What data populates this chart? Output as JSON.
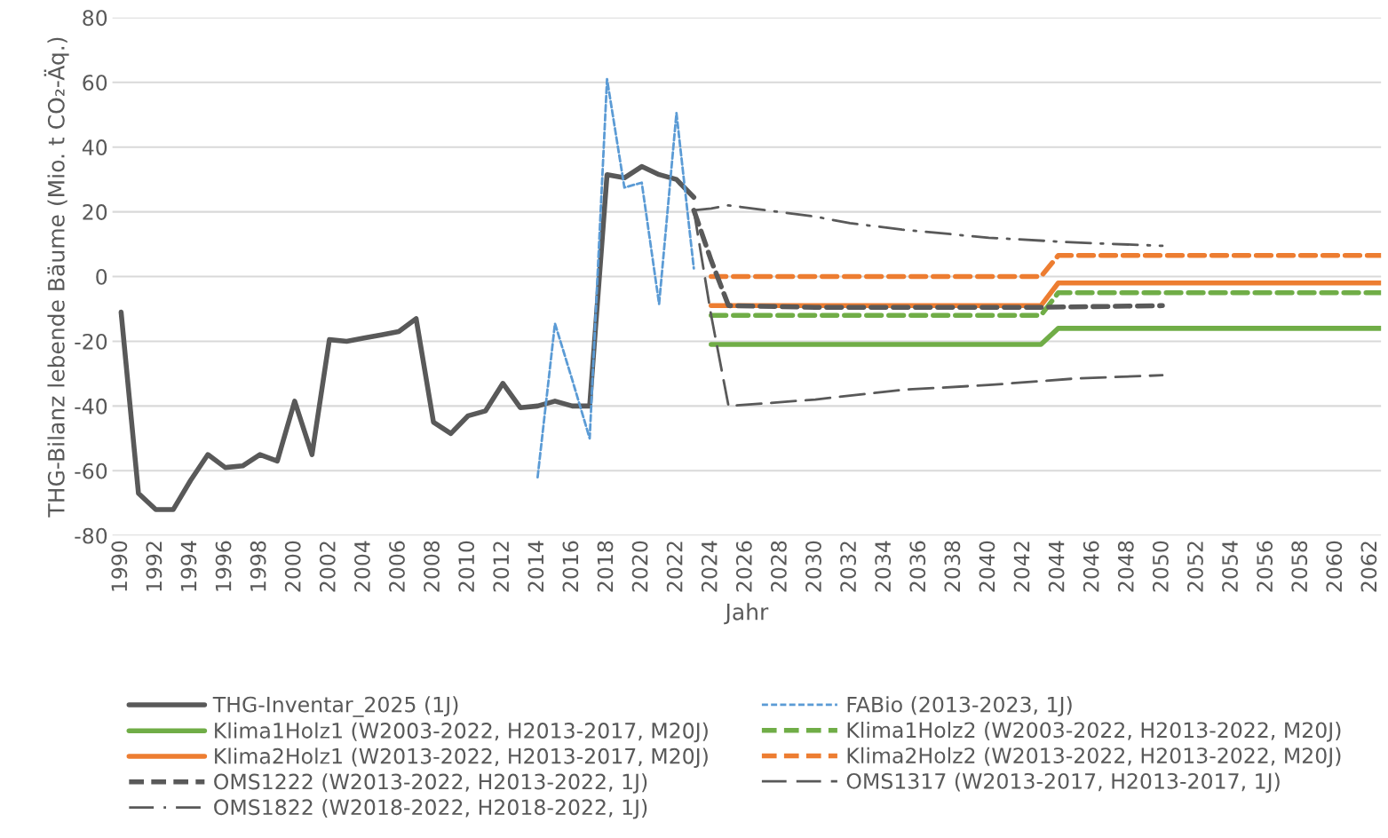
{
  "chart_data": {
    "type": "line",
    "xlabel": "Jahr",
    "ylabel": "THG-Bilanz lebende Bäume (Mio. t CO₂-Äq.)",
    "xlim": [
      1989.5,
      2062.6
    ],
    "xticks": [
      1990,
      1992,
      1994,
      1996,
      1998,
      2000,
      2002,
      2004,
      2006,
      2008,
      2010,
      2012,
      2014,
      2016,
      2018,
      2020,
      2022,
      2024,
      2026,
      2028,
      2030,
      2032,
      2034,
      2036,
      2038,
      2040,
      2042,
      2044,
      2046,
      2048,
      2050,
      2052,
      2054,
      2056,
      2058,
      2060,
      2062
    ],
    "ylim": [
      -80,
      80
    ],
    "yticks": [
      -80,
      -60,
      -40,
      -20,
      0,
      20,
      40,
      60,
      80
    ],
    "grid": "y",
    "legend": "bottom",
    "marker": "none",
    "series": [
      {
        "name": "THG-Inventar_2025 (1J)",
        "color": "#595959",
        "line_style": "solid",
        "x": [
          1990,
          1991,
          1992,
          1993,
          1994,
          1995,
          1996,
          1997,
          1998,
          1999,
          2000,
          2001,
          2002,
          2003,
          2004,
          2005,
          2006,
          2007,
          2008,
          2009,
          2010,
          2011,
          2012,
          2013,
          2014,
          2015,
          2016,
          2017,
          2018,
          2019,
          2020,
          2021,
          2022,
          2023
        ],
        "values": [
          -11,
          -67,
          -72,
          -72,
          -63,
          -55,
          -59,
          -58.5,
          -55,
          -57,
          -38.5,
          -55,
          -19.5,
          -20,
          -19,
          -18,
          -17,
          -13,
          -45,
          -48.5,
          -43,
          -41.5,
          -33,
          -40.5,
          -40,
          -38.5,
          -40,
          -40,
          31.5,
          30.5,
          34,
          31.5,
          30,
          24.5
        ]
      },
      {
        "name": "FABio (2013-2023, 1J)",
        "color": "#5b9bd5",
        "line_style": "dotted",
        "x": [
          2014,
          2015,
          2016,
          2017,
          2018,
          2019,
          2020,
          2021,
          2022,
          2023
        ],
        "values": [
          -62,
          -14.5,
          -32,
          -50,
          61,
          27.5,
          29,
          -8.5,
          50.5,
          2.5
        ]
      },
      {
        "name": "Klima1Holz1 (W2003-2022, H2013-2017, M20J)",
        "color": "#70ad47",
        "line_style": "solid",
        "x": [
          2024,
          2043,
          2044,
          2062.6
        ],
        "values": [
          -21,
          -21,
          -16,
          -16
        ]
      },
      {
        "name": "Klima1Holz2 (W2003-2022, H2013-2022, M20J)",
        "color": "#70ad47",
        "line_style": "dashed",
        "x": [
          2024,
          2043,
          2044,
          2062.6
        ],
        "values": [
          -12,
          -12,
          -5,
          -5
        ]
      },
      {
        "name": "Klima2Holz1 (W2013-2022, H2013-2017, M20J)",
        "color": "#ed7d31",
        "line_style": "solid",
        "x": [
          2024,
          2043,
          2044,
          2062.6
        ],
        "values": [
          -9,
          -9,
          -2,
          -2
        ]
      },
      {
        "name": "Klima2Holz2 (W2013-2022, H2013-2022, M20J)",
        "color": "#ed7d31",
        "line_style": "dashed",
        "x": [
          2024,
          2043,
          2044,
          2062.6
        ],
        "values": [
          0,
          0,
          6.5,
          6.5
        ]
      },
      {
        "name": "OMS1222 (W2013-2022, H2013-2022, 1J)",
        "color": "#595959",
        "line_style": "dashed",
        "x": [
          2023,
          2024,
          2025,
          2030,
          2040,
          2043,
          2050
        ],
        "values": [
          20.5,
          5,
          -9,
          -9.5,
          -9.5,
          -9.5,
          -9
        ]
      },
      {
        "name": "OMS1317 (W2013-2017, H2013-2017, 1J)",
        "color": "#595959",
        "line_style": "longdash",
        "x": [
          2023,
          2024,
          2025,
          2030,
          2035,
          2040,
          2045,
          2050
        ],
        "values": [
          20.5,
          -12,
          -40,
          -38,
          -35,
          -33.5,
          -31.5,
          -30.5
        ]
      },
      {
        "name": "OMS1822 (W2018-2022, H2018-2022, 1J)",
        "color": "#595959",
        "line_style": "dashdot",
        "x": [
          2023,
          2024,
          2025,
          2030,
          2032,
          2035,
          2038,
          2040,
          2045,
          2050
        ],
        "values": [
          20.5,
          21,
          22,
          18.5,
          16.5,
          14.5,
          13,
          12,
          10.5,
          9.5
        ]
      }
    ]
  }
}
